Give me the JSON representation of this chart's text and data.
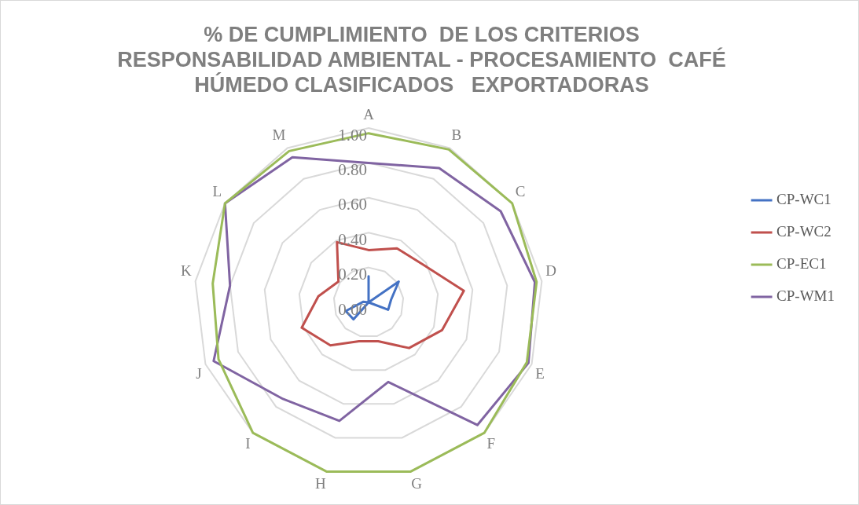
{
  "chart_data": {
    "type": "radar",
    "title": "% DE CUMPLIMIENTO  DE LOS CRITERIOS\nRESPONSABILIDAD AMBIENTAL - PROCESAMIENTO  CAFÉ\nHÚMEDO CLASIFICADOS   EXPORTADORAS",
    "categories": [
      "A",
      "B",
      "C",
      "D",
      "E",
      "F",
      "G",
      "H",
      "I",
      "J",
      "K",
      "L",
      "M"
    ],
    "ylim": [
      0,
      1
    ],
    "yticks": [
      {
        "value": 0,
        "label": "0.00"
      },
      {
        "value": 0.2,
        "label": "0.20"
      },
      {
        "value": 0.4,
        "label": "0.40"
      },
      {
        "value": 0.6,
        "label": "0.60"
      },
      {
        "value": 0.8,
        "label": "0.80"
      },
      {
        "value": 1,
        "label": "1.00"
      }
    ],
    "grid": true,
    "legend": "right",
    "series": [
      {
        "name": "CP-WC1",
        "color": "#4472c4",
        "values": [
          0.15,
          0,
          0.21,
          0.13,
          0.12,
          0,
          0,
          0,
          0.13,
          0.14,
          0.03,
          0,
          0
        ]
      },
      {
        "name": "CP-WC2",
        "color": "#c0504d",
        "values": [
          0.3,
          0.35,
          0.38,
          0.55,
          0.45,
          0.35,
          0.23,
          0.23,
          0.33,
          0.41,
          0.29,
          0.21,
          0.39
        ]
      },
      {
        "name": "CP-EC1",
        "color": "#9bbb59",
        "values": [
          0.97,
          0.99,
          1,
          0.97,
          0.97,
          1,
          1,
          1,
          1,
          0.92,
          0.9,
          1,
          0.98
        ]
      },
      {
        "name": "CP-WM1",
        "color": "#8064a2",
        "values": [
          0.8,
          0.87,
          0.92,
          0.96,
          0.98,
          0.94,
          0.47,
          0.7,
          0.74,
          0.95,
          0.8,
          1,
          0.94
        ]
      }
    ]
  }
}
